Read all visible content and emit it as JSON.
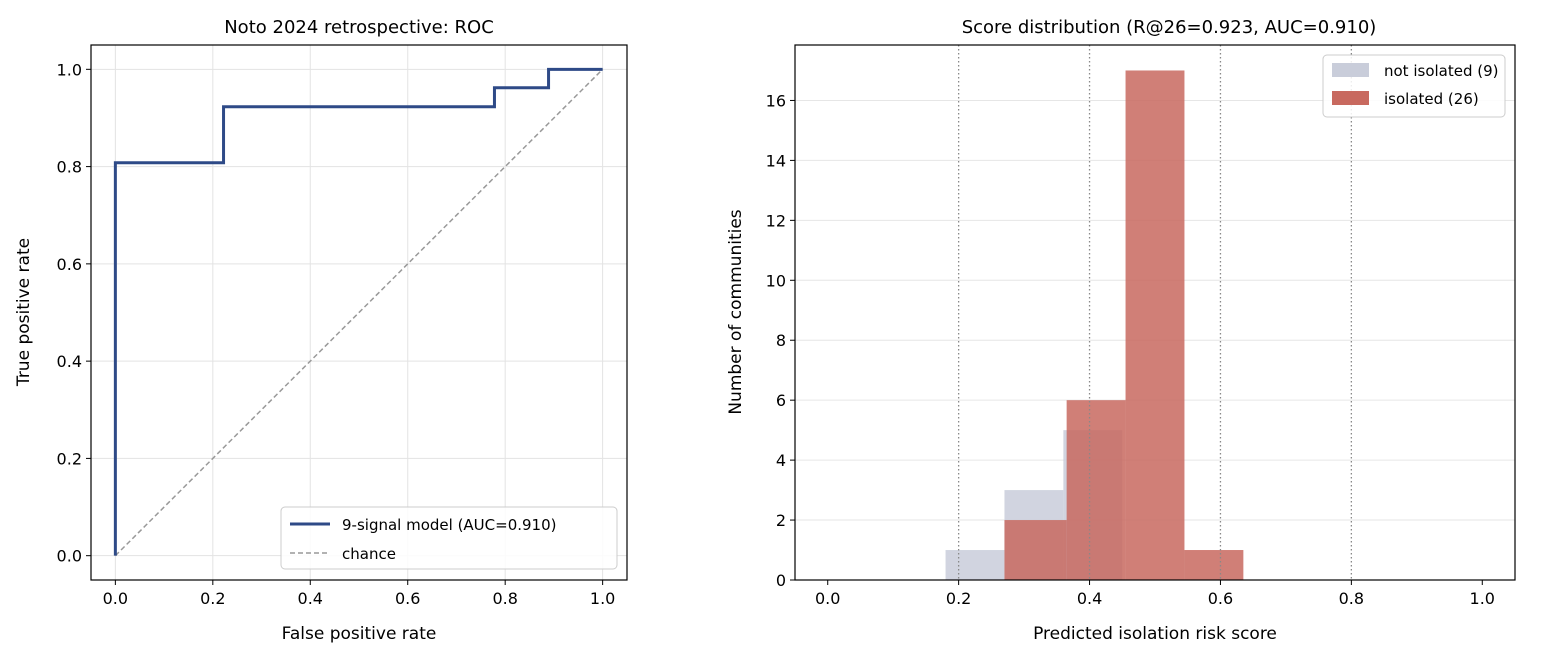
{
  "chart_data": [
    {
      "type": "line",
      "title": "Noto 2024 retrospective: ROC",
      "xlabel": "False positive rate",
      "ylabel": "True positive rate",
      "xlim": [
        -0.05,
        1.05
      ],
      "ylim": [
        -0.05,
        1.05
      ],
      "xticks": [
        "0.0",
        "0.2",
        "0.4",
        "0.6",
        "0.8",
        "1.0"
      ],
      "yticks": [
        "0.0",
        "0.2",
        "0.4",
        "0.6",
        "0.8",
        "1.0"
      ],
      "grid": true,
      "legend_placement": "lower-right",
      "series": [
        {
          "name": "9-signal model (AUC=0.910)",
          "color": "#2e4a87",
          "style": "solid",
          "x": [
            0.0,
            0.0,
            0.222,
            0.222,
            0.778,
            0.778,
            0.889,
            0.889,
            1.0
          ],
          "y": [
            0.0,
            0.808,
            0.808,
            0.923,
            0.923,
            0.962,
            0.962,
            1.0,
            1.0
          ]
        },
        {
          "name": "chance",
          "color": "#999999",
          "style": "dashed",
          "x": [
            0.0,
            1.0
          ],
          "y": [
            0.0,
            1.0
          ]
        }
      ]
    },
    {
      "type": "bar",
      "title": "Score distribution (R@26=0.923, AUC=0.910)",
      "xlabel": "Predicted isolation risk score",
      "ylabel": "Number of communities",
      "xlim": [
        -0.05,
        1.05
      ],
      "ylim": [
        0,
        17.85
      ],
      "xticks": [
        "0.0",
        "0.2",
        "0.4",
        "0.6",
        "0.8",
        "1.0"
      ],
      "yticks": [
        "0",
        "2",
        "4",
        "6",
        "8",
        "10",
        "12",
        "14",
        "16"
      ],
      "vlines": [
        0.2,
        0.4,
        0.6,
        0.8
      ],
      "grid": "y",
      "legend_placement": "upper-right",
      "series": [
        {
          "name": "not isolated (9)",
          "color": "#c9cdda",
          "bins": [
            [
              0.18,
              0.27,
              1
            ],
            [
              0.27,
              0.36,
              3
            ],
            [
              0.36,
              0.45,
              5
            ]
          ]
        },
        {
          "name": "isolated (26)",
          "color": "#c8695f",
          "bins": [
            [
              0.27,
              0.365,
              2
            ],
            [
              0.365,
              0.455,
              6
            ],
            [
              0.455,
              0.545,
              17
            ],
            [
              0.545,
              0.635,
              1
            ]
          ]
        }
      ]
    }
  ]
}
